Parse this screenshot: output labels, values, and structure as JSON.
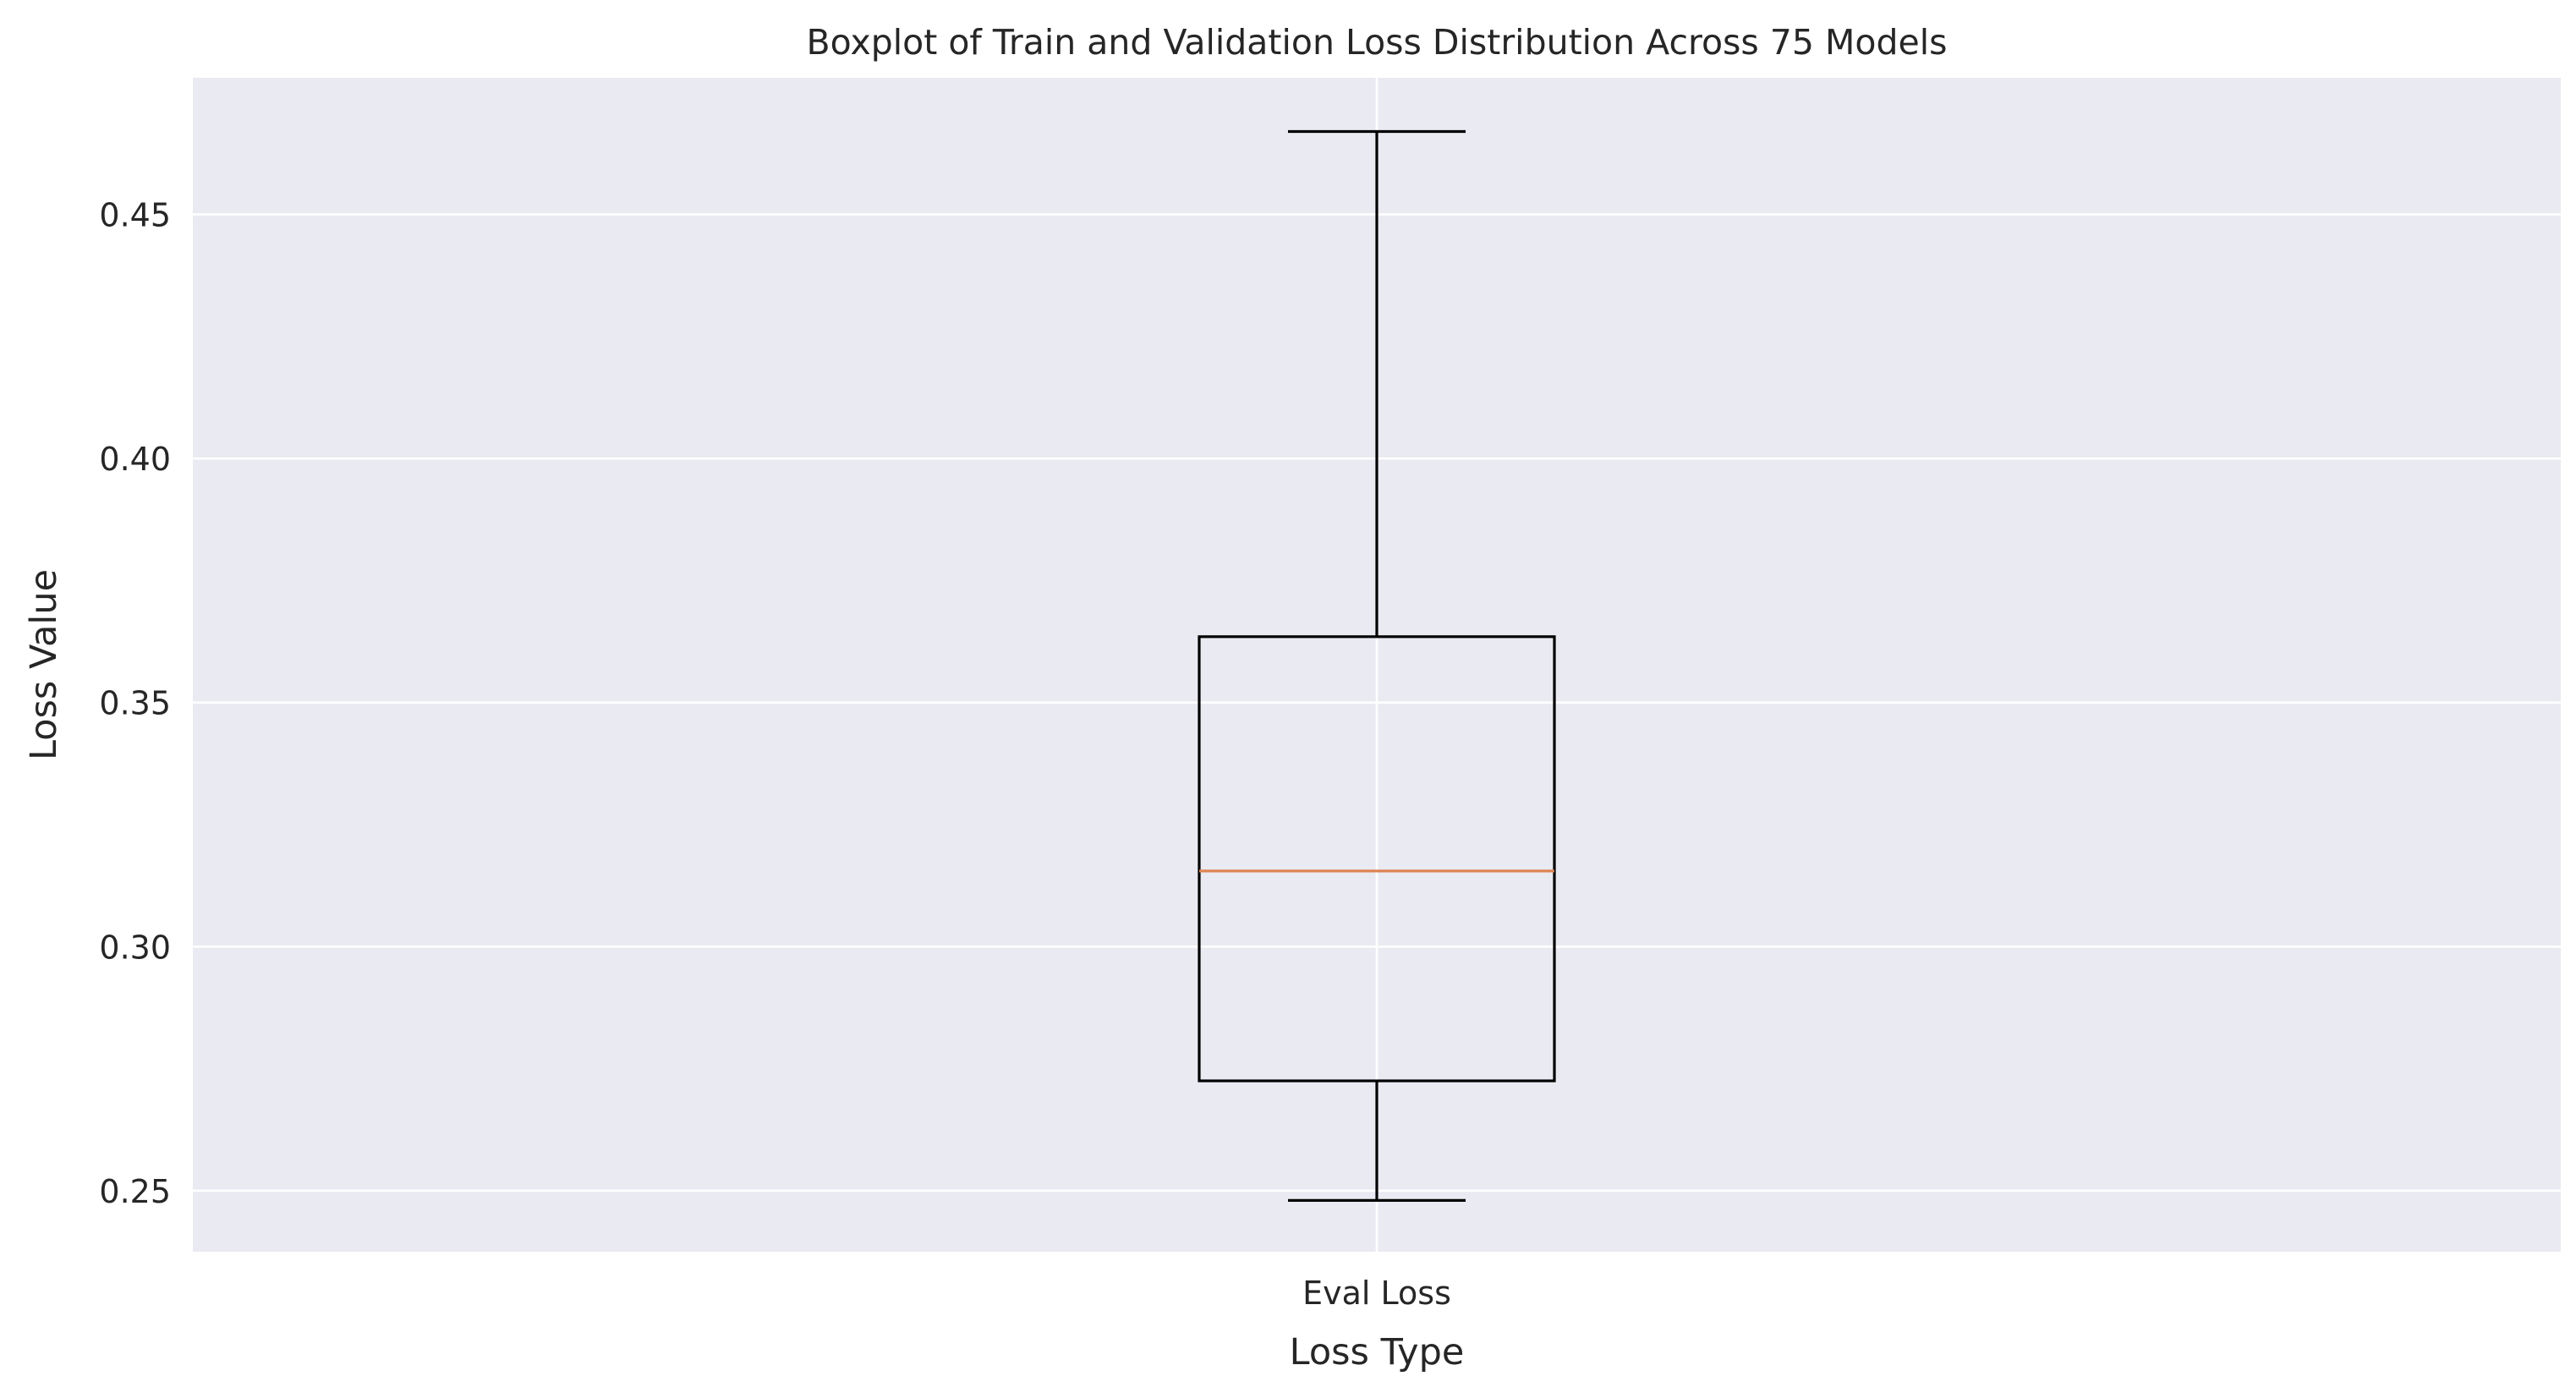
{
  "chart_data": {
    "type": "box",
    "title": "Boxplot of Train and Validation Loss Distribution Across 75 Models",
    "xlabel": "Loss Type",
    "ylabel": "Loss Value",
    "ylim": [
      0.2375,
      0.478
    ],
    "yticks": [
      0.25,
      0.3,
      0.35,
      0.4,
      0.45
    ],
    "ytick_labels": [
      "0.25",
      "0.30",
      "0.35",
      "0.40",
      "0.45"
    ],
    "grid": true,
    "categories": [
      "Eval Loss"
    ],
    "boxes": [
      {
        "label": "Eval Loss",
        "whisker_low": 0.248,
        "q1": 0.2725,
        "median": 0.3155,
        "q3": 0.3635,
        "whisker_high": 0.467
      }
    ],
    "colors": {
      "background": "#eaeaf2",
      "grid": "#ffffff",
      "box": "#000000",
      "median": "#dd8452",
      "text": "#262626"
    }
  }
}
